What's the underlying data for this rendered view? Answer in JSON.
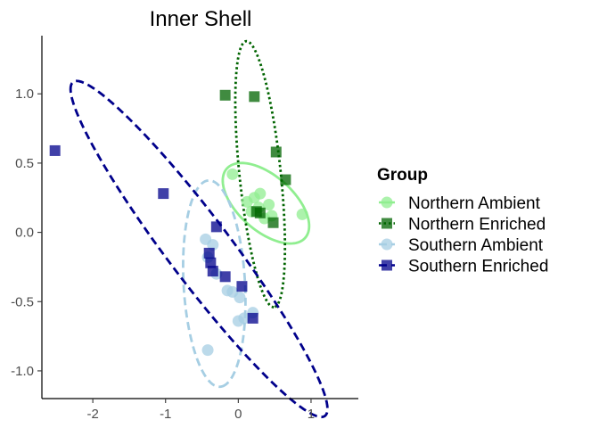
{
  "chart_data": {
    "type": "scatter",
    "title": "Inner Shell",
    "xlabel": "",
    "ylabel": "",
    "xlim": [
      -2.7,
      1.65
    ],
    "ylim": [
      -1.2,
      1.42
    ],
    "x_ticks": [
      -2,
      -1,
      0,
      1
    ],
    "y_ticks": [
      -1.0,
      -0.5,
      0.0,
      0.5,
      1.0
    ],
    "x_tick_labels": [
      "-2",
      "-1",
      "0",
      "1"
    ],
    "y_tick_labels": [
      "-1.0",
      "-0.5",
      "0.0",
      "0.5",
      "1.0"
    ],
    "grid": false,
    "legend": {
      "title": "Group",
      "position": "right"
    },
    "series": [
      {
        "name": "Northern Ambient",
        "marker": "circle",
        "color": "#90EE90",
        "points": [
          [
            -0.08,
            0.42
          ],
          [
            0.12,
            0.22
          ],
          [
            0.22,
            0.25
          ],
          [
            0.3,
            0.28
          ],
          [
            0.18,
            0.15
          ],
          [
            0.28,
            0.18
          ],
          [
            0.42,
            0.2
          ],
          [
            0.46,
            0.12
          ],
          [
            0.36,
            0.1
          ],
          [
            0.88,
            0.13
          ]
        ],
        "ellipse": {
          "cx": 0.38,
          "cy": 0.21,
          "rx": 0.62,
          "ry": 0.23,
          "angle_deg": -18,
          "style": "solid"
        }
      },
      {
        "name": "Northern Enriched",
        "marker": "square",
        "color": "#006400",
        "points": [
          [
            -0.18,
            0.99
          ],
          [
            0.22,
            0.98
          ],
          [
            0.52,
            0.58
          ],
          [
            0.65,
            0.38
          ],
          [
            0.25,
            0.15
          ],
          [
            0.3,
            0.14
          ],
          [
            0.48,
            0.07
          ]
        ],
        "ellipse": {
          "cx": 0.3,
          "cy": 0.42,
          "rx": 0.98,
          "ry": 0.28,
          "angle_deg": -78,
          "style": "dotted"
        }
      },
      {
        "name": "Southern Ambient",
        "marker": "circle",
        "color": "#A6CEE3",
        "points": [
          [
            -0.45,
            -0.05
          ],
          [
            -0.35,
            -0.09
          ],
          [
            -0.42,
            -0.18
          ],
          [
            -0.3,
            -0.3
          ],
          [
            -0.15,
            -0.42
          ],
          [
            -0.08,
            -0.43
          ],
          [
            0.02,
            -0.47
          ],
          [
            0.2,
            -0.58
          ],
          [
            0.08,
            -0.62
          ],
          [
            0.0,
            -0.64
          ],
          [
            -0.42,
            -0.85
          ]
        ],
        "ellipse": {
          "cx": -0.33,
          "cy": -0.37,
          "rx": 0.75,
          "ry": 0.42,
          "angle_deg": -82,
          "style": "dashed"
        }
      },
      {
        "name": "Southern Enriched",
        "marker": "square",
        "color": "#00008B",
        "points": [
          [
            -2.52,
            0.59
          ],
          [
            -1.03,
            0.28
          ],
          [
            -0.3,
            0.04
          ],
          [
            -0.4,
            -0.15
          ],
          [
            -0.38,
            -0.22
          ],
          [
            -0.35,
            -0.28
          ],
          [
            -0.18,
            -0.32
          ],
          [
            0.05,
            -0.39
          ],
          [
            0.2,
            -0.62
          ]
        ],
        "ellipse": {
          "cx": -0.54,
          "cy": -0.12,
          "rx": 2.12,
          "ry": 0.31,
          "angle_deg": 146,
          "style": "dashed"
        }
      }
    ]
  }
}
